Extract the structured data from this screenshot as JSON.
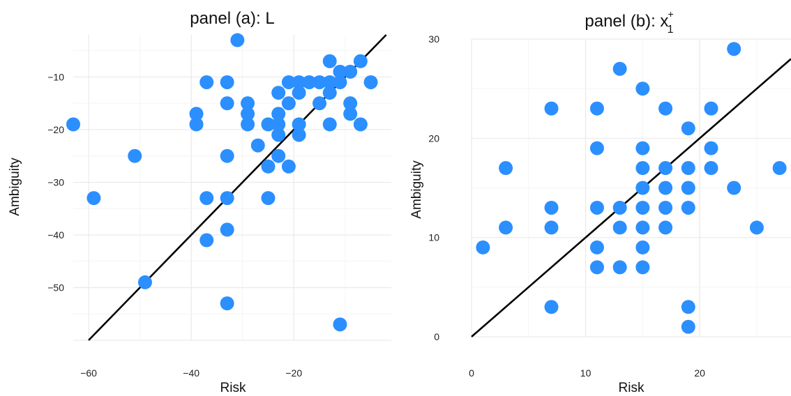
{
  "chart_data": [
    {
      "type": "scatter",
      "title": "panel (a): L",
      "xlabel": "Risk",
      "ylabel": "Ambiguity",
      "xlim": [
        -63,
        -1
      ],
      "ylim": [
        -60,
        -2
      ],
      "xticks": [
        -60,
        -40,
        -20
      ],
      "yticks": [
        -50,
        -40,
        -30,
        -20,
        -10
      ],
      "xtick_labels": [
        "−60",
        "−40",
        "−20"
      ],
      "ytick_labels": [
        "−50",
        "−40",
        "−30",
        "−20",
        "−10"
      ],
      "grid": true,
      "color": "#2b8fff",
      "line_color": "#000000",
      "reference_line": {
        "slope": 1,
        "intercept": 0
      },
      "points": [
        {
          "x": -63,
          "y": -19
        },
        {
          "x": -59,
          "y": -33
        },
        {
          "x": -51,
          "y": -25
        },
        {
          "x": -49,
          "y": -49
        },
        {
          "x": -39,
          "y": -17
        },
        {
          "x": -39,
          "y": -19
        },
        {
          "x": -37,
          "y": -11
        },
        {
          "x": -37,
          "y": -33
        },
        {
          "x": -37,
          "y": -41
        },
        {
          "x": -33,
          "y": -11
        },
        {
          "x": -33,
          "y": -15
        },
        {
          "x": -33,
          "y": -25
        },
        {
          "x": -33,
          "y": -33
        },
        {
          "x": -33,
          "y": -39
        },
        {
          "x": -33,
          "y": -53
        },
        {
          "x": -31,
          "y": -3
        },
        {
          "x": -29,
          "y": -15
        },
        {
          "x": -29,
          "y": -17
        },
        {
          "x": -29,
          "y": -19
        },
        {
          "x": -27,
          "y": -23
        },
        {
          "x": -25,
          "y": -19
        },
        {
          "x": -25,
          "y": -27
        },
        {
          "x": -25,
          "y": -33
        },
        {
          "x": -23,
          "y": -13
        },
        {
          "x": -23,
          "y": -17
        },
        {
          "x": -23,
          "y": -19
        },
        {
          "x": -23,
          "y": -21
        },
        {
          "x": -23,
          "y": -25
        },
        {
          "x": -21,
          "y": -11
        },
        {
          "x": -21,
          "y": -15
        },
        {
          "x": -21,
          "y": -27
        },
        {
          "x": -19,
          "y": -11
        },
        {
          "x": -19,
          "y": -13
        },
        {
          "x": -19,
          "y": -19
        },
        {
          "x": -19,
          "y": -21
        },
        {
          "x": -17,
          "y": -11
        },
        {
          "x": -15,
          "y": -11
        },
        {
          "x": -15,
          "y": -15
        },
        {
          "x": -13,
          "y": -7
        },
        {
          "x": -13,
          "y": -11
        },
        {
          "x": -13,
          "y": -13
        },
        {
          "x": -13,
          "y": -19
        },
        {
          "x": -11,
          "y": -9
        },
        {
          "x": -11,
          "y": -11
        },
        {
          "x": -11,
          "y": -57
        },
        {
          "x": -9,
          "y": -9
        },
        {
          "x": -9,
          "y": -15
        },
        {
          "x": -9,
          "y": -17
        },
        {
          "x": -7,
          "y": -7
        },
        {
          "x": -7,
          "y": -19
        },
        {
          "x": -5,
          "y": -11
        }
      ]
    },
    {
      "type": "scatter",
      "title_base": "panel (b): x",
      "title_sup": "+",
      "title_sub": "1",
      "xlabel": "Risk",
      "ylabel": "Ambiguity",
      "xlim": [
        0,
        28
      ],
      "ylim": [
        0,
        30
      ],
      "xticks": [
        0,
        10,
        20
      ],
      "yticks": [
        0,
        10,
        20,
        30
      ],
      "xtick_labels": [
        "0",
        "10",
        "20"
      ],
      "ytick_labels": [
        "0",
        "10",
        "20",
        "30"
      ],
      "grid": true,
      "color": "#2b8fff",
      "line_color": "#000000",
      "reference_line": {
        "slope": 1,
        "intercept": 0
      },
      "points": [
        {
          "x": 1,
          "y": 9
        },
        {
          "x": 3,
          "y": 11
        },
        {
          "x": 3,
          "y": 17
        },
        {
          "x": 7,
          "y": 3
        },
        {
          "x": 7,
          "y": 11
        },
        {
          "x": 7,
          "y": 13
        },
        {
          "x": 7,
          "y": 23
        },
        {
          "x": 11,
          "y": 7
        },
        {
          "x": 11,
          "y": 9
        },
        {
          "x": 11,
          "y": 13
        },
        {
          "x": 11,
          "y": 19
        },
        {
          "x": 11,
          "y": 23
        },
        {
          "x": 13,
          "y": 7
        },
        {
          "x": 13,
          "y": 11
        },
        {
          "x": 13,
          "y": 13
        },
        {
          "x": 13,
          "y": 27
        },
        {
          "x": 15,
          "y": 7
        },
        {
          "x": 15,
          "y": 9
        },
        {
          "x": 15,
          "y": 11
        },
        {
          "x": 15,
          "y": 13
        },
        {
          "x": 15,
          "y": 15
        },
        {
          "x": 15,
          "y": 17
        },
        {
          "x": 15,
          "y": 19
        },
        {
          "x": 15,
          "y": 25
        },
        {
          "x": 17,
          "y": 11
        },
        {
          "x": 17,
          "y": 13
        },
        {
          "x": 17,
          "y": 15
        },
        {
          "x": 17,
          "y": 17
        },
        {
          "x": 17,
          "y": 23
        },
        {
          "x": 19,
          "y": 1
        },
        {
          "x": 19,
          "y": 3
        },
        {
          "x": 19,
          "y": 13
        },
        {
          "x": 19,
          "y": 15
        },
        {
          "x": 19,
          "y": 17
        },
        {
          "x": 19,
          "y": 21
        },
        {
          "x": 21,
          "y": 17
        },
        {
          "x": 21,
          "y": 19
        },
        {
          "x": 21,
          "y": 23
        },
        {
          "x": 23,
          "y": 15
        },
        {
          "x": 23,
          "y": 29
        },
        {
          "x": 25,
          "y": 11
        },
        {
          "x": 27,
          "y": 17
        }
      ]
    }
  ]
}
